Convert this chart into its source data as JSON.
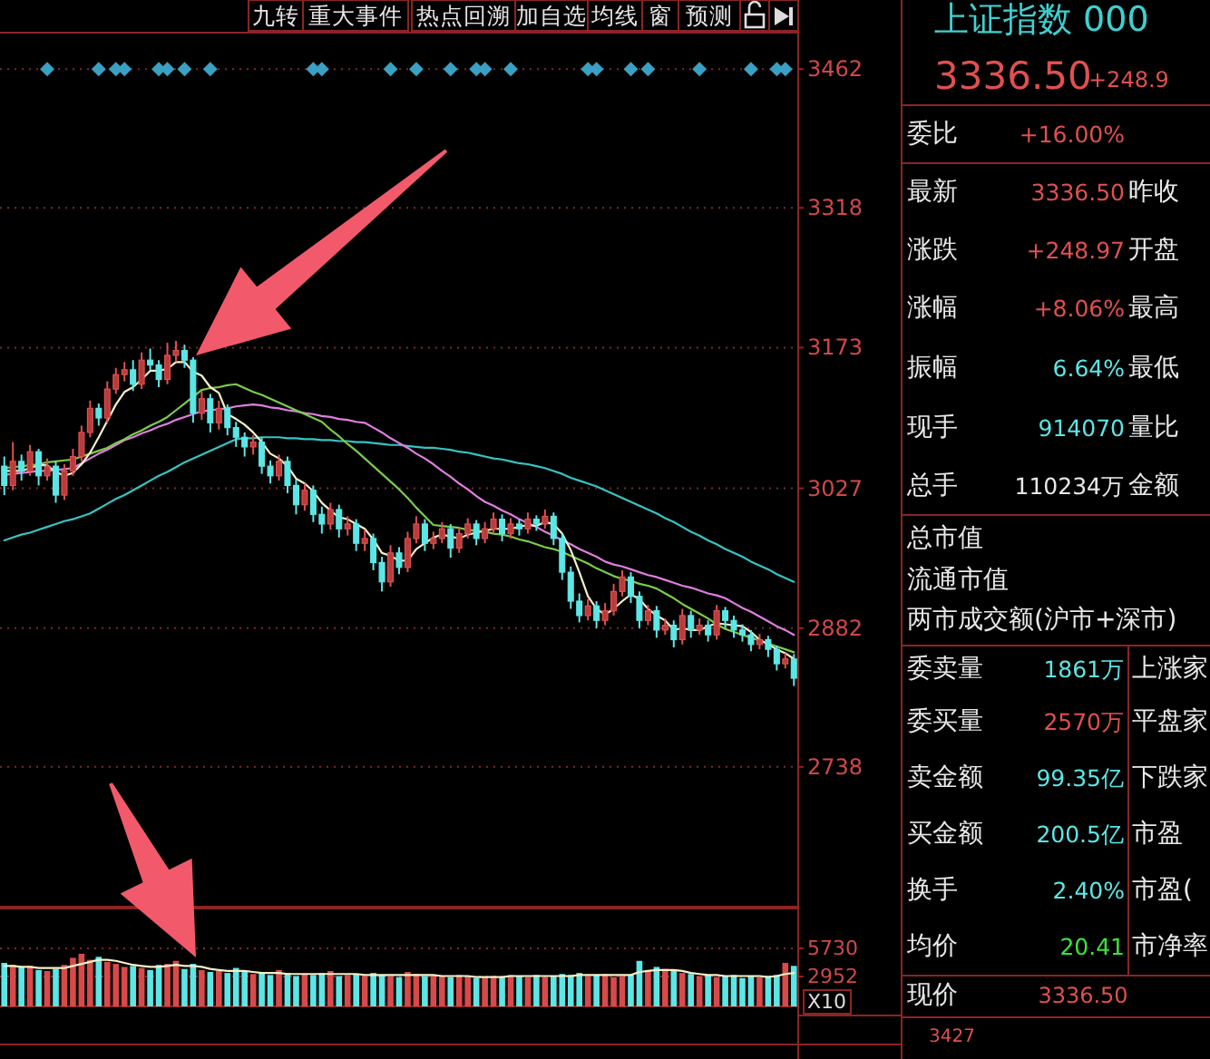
{
  "chart_data": [
    {
      "type": "candlestick",
      "tick_labels": "y",
      "grid": "y",
      "ylim": [
        2593,
        3496
      ],
      "yticks": [
        3462,
        3318,
        3173,
        3027,
        2882,
        2738
      ],
      "annotations": [
        "九转",
        "重大事件",
        "热点回溯",
        "加自选",
        "均线",
        "窗",
        "预测"
      ],
      "categories": [
        null,
        null,
        null,
        null,
        null,
        null,
        null,
        null,
        null,
        null,
        null,
        null,
        null,
        null,
        null,
        null,
        null,
        null,
        null,
        null,
        null,
        null,
        null,
        null,
        null,
        null,
        null,
        null,
        null,
        null,
        null,
        null,
        null,
        null,
        null,
        null,
        null,
        null,
        null,
        null,
        null,
        null,
        null,
        null,
        null,
        null,
        null,
        null,
        null,
        null,
        null,
        null,
        null,
        null,
        null,
        null,
        null,
        null,
        null,
        null,
        null,
        null,
        null,
        null,
        null,
        null,
        null,
        null,
        null,
        null,
        null,
        null,
        null,
        null,
        null,
        null,
        null,
        null,
        null,
        null,
        null,
        null,
        null,
        null,
        null,
        null,
        null,
        null,
        null,
        null,
        null,
        null,
        null
      ],
      "ohlc": [
        [
          3050,
          3060,
          3020,
          3030
        ],
        [
          3030,
          3075,
          3025,
          3055
        ],
        [
          3055,
          3062,
          3035,
          3045
        ],
        [
          3045,
          3072,
          3040,
          3065
        ],
        [
          3065,
          3068,
          3030,
          3040
        ],
        [
          3040,
          3058,
          3035,
          3050
        ],
        [
          3050,
          3055,
          3012,
          3020
        ],
        [
          3020,
          3052,
          3015,
          3045
        ],
        [
          3045,
          3068,
          3040,
          3060
        ],
        [
          3060,
          3092,
          3055,
          3085
        ],
        [
          3085,
          3118,
          3080,
          3110
        ],
        [
          3110,
          3115,
          3092,
          3100
        ],
        [
          3100,
          3138,
          3095,
          3130
        ],
        [
          3130,
          3152,
          3125,
          3145
        ],
        [
          3145,
          3158,
          3138,
          3150
        ],
        [
          3150,
          3160,
          3128,
          3135
        ],
        [
          3135,
          3168,
          3130,
          3160
        ],
        [
          3160,
          3172,
          3150,
          3155
        ],
        [
          3155,
          3160,
          3132,
          3140
        ],
        [
          3140,
          3178,
          3135,
          3165
        ],
        [
          3165,
          3180,
          3158,
          3170
        ],
        [
          3170,
          3176,
          3152,
          3160
        ],
        [
          3160,
          3163,
          3095,
          3105
        ],
        [
          3105,
          3128,
          3098,
          3120
        ],
        [
          3120,
          3125,
          3085,
          3095
        ],
        [
          3095,
          3118,
          3088,
          3110
        ],
        [
          3110,
          3114,
          3082,
          3090
        ],
        [
          3090,
          3096,
          3070,
          3080
        ],
        [
          3080,
          3085,
          3060,
          3070
        ],
        [
          3070,
          3082,
          3062,
          3075
        ],
        [
          3075,
          3080,
          3042,
          3050
        ],
        [
          3050,
          3056,
          3032,
          3040
        ],
        [
          3040,
          3062,
          3035,
          3055
        ],
        [
          3055,
          3060,
          3022,
          3030
        ],
        [
          3030,
          3036,
          3000,
          3010
        ],
        [
          3010,
          3032,
          3004,
          3025
        ],
        [
          3025,
          3030,
          2992,
          3000
        ],
        [
          3000,
          3008,
          2980,
          2990
        ],
        [
          2990,
          3012,
          2984,
          3005
        ],
        [
          3005,
          3010,
          2976,
          2985
        ],
        [
          2985,
          2998,
          2978,
          2990
        ],
        [
          2990,
          2995,
          2962,
          2970
        ],
        [
          2970,
          2984,
          2962,
          2975
        ],
        [
          2975,
          2980,
          2942,
          2950
        ],
        [
          2950,
          2956,
          2920,
          2930
        ],
        [
          2930,
          2968,
          2925,
          2960
        ],
        [
          2960,
          2966,
          2938,
          2945
        ],
        [
          2945,
          2982,
          2940,
          2975
        ],
        [
          2975,
          2998,
          2970,
          2990
        ],
        [
          2990,
          2995,
          2962,
          2970
        ],
        [
          2970,
          2982,
          2964,
          2975
        ],
        [
          2975,
          2992,
          2970,
          2985
        ],
        [
          2985,
          2990,
          2955,
          2965
        ],
        [
          2965,
          2986,
          2960,
          2980
        ],
        [
          2980,
          2996,
          2975,
          2990
        ],
        [
          2990,
          2994,
          2968,
          2975
        ],
        [
          2975,
          2992,
          2970,
          2985
        ],
        [
          2985,
          3002,
          2980,
          2995
        ],
        [
          2995,
          3000,
          2972,
          2980
        ],
        [
          2980,
          2996,
          2975,
          2990
        ],
        [
          2990,
          2995,
          2978,
          2985
        ],
        [
          2985,
          3002,
          2980,
          2995
        ],
        [
          2995,
          2999,
          2983,
          2990
        ],
        [
          2990,
          3005,
          2985,
          2998
        ],
        [
          2998,
          3002,
          2968,
          2975
        ],
        [
          2975,
          2980,
          2932,
          2940
        ],
        [
          2940,
          2946,
          2902,
          2910
        ],
        [
          2910,
          2918,
          2888,
          2895
        ],
        [
          2895,
          2912,
          2890,
          2905
        ],
        [
          2905,
          2910,
          2882,
          2890
        ],
        [
          2890,
          2908,
          2885,
          2900
        ],
        [
          2900,
          2928,
          2895,
          2920
        ],
        [
          2920,
          2942,
          2915,
          2935
        ],
        [
          2935,
          2940,
          2908,
          2915
        ],
        [
          2915,
          2920,
          2882,
          2890
        ],
        [
          2890,
          2906,
          2885,
          2900
        ],
        [
          2900,
          2905,
          2872,
          2880
        ],
        [
          2880,
          2892,
          2875,
          2885
        ],
        [
          2885,
          2890,
          2862,
          2870
        ],
        [
          2870,
          2902,
          2865,
          2895
        ],
        [
          2895,
          2900,
          2872,
          2880
        ],
        [
          2880,
          2892,
          2875,
          2885
        ],
        [
          2885,
          2890,
          2868,
          2875
        ],
        [
          2875,
          2906,
          2870,
          2900
        ],
        [
          2900,
          2904,
          2882,
          2890
        ],
        [
          2890,
          2895,
          2872,
          2880
        ],
        [
          2880,
          2886,
          2868,
          2875
        ],
        [
          2875,
          2880,
          2858,
          2865
        ],
        [
          2865,
          2876,
          2860,
          2870
        ],
        [
          2870,
          2874,
          2852,
          2860
        ],
        [
          2860,
          2864,
          2838,
          2845
        ],
        [
          2845,
          2856,
          2840,
          2850
        ],
        [
          2850,
          2855,
          2822,
          2830
        ]
      ],
      "series": [
        {
          "type": "line",
          "color": "#36c4c4",
          "values": [
            2973,
            2976,
            2979,
            2981,
            2984,
            2987,
            2990,
            2993,
            2995,
            2998,
            3001,
            3006,
            3011,
            3016,
            3020,
            3025,
            3030,
            3035,
            3040,
            3044,
            3049,
            3054,
            3058,
            3062,
            3066,
            3070,
            3074,
            3078,
            3079,
            3079,
            3080,
            3080,
            3080,
            3079,
            3079,
            3078,
            3078,
            3077,
            3077,
            3076,
            3076,
            3075,
            3075,
            3074,
            3073,
            3072,
            3072,
            3071,
            3070,
            3069,
            3069,
            3068,
            3067,
            3065,
            3064,
            3062,
            3060,
            3058,
            3057,
            3055,
            3053,
            3052,
            3050,
            3048,
            3045,
            3042,
            3038,
            3035,
            3032,
            3029,
            3025,
            3021,
            3017,
            3013,
            3009,
            3005,
            3001,
            2996,
            2992,
            2987,
            2982,
            2978,
            2973,
            2969,
            2964,
            2960,
            2956,
            2951,
            2947,
            2943,
            2938,
            2934,
            2930
          ]
        },
        {
          "type": "line",
          "color": "#e07ee0",
          "values": [
            3041,
            3042,
            3043,
            3044,
            3045,
            3045,
            3046,
            3047,
            3048,
            3053,
            3058,
            3063,
            3067,
            3072,
            3077,
            3080,
            3084,
            3087,
            3091,
            3094,
            3098,
            3101,
            3104,
            3107,
            3108,
            3109,
            3110,
            3112,
            3113,
            3114,
            3113,
            3111,
            3110,
            3108,
            3107,
            3105,
            3104,
            3102,
            3101,
            3099,
            3098,
            3096,
            3095,
            3090,
            3085,
            3079,
            3074,
            3069,
            3063,
            3058,
            3052,
            3045,
            3039,
            3032,
            3026,
            3019,
            3013,
            3009,
            3004,
            3000,
            2995,
            2991,
            2987,
            2982,
            2978,
            2973,
            2969,
            2964,
            2960,
            2956,
            2951,
            2948,
            2946,
            2943,
            2940,
            2937,
            2935,
            2932,
            2929,
            2926,
            2924,
            2921,
            2918,
            2916,
            2913,
            2908,
            2903,
            2899,
            2894,
            2889,
            2884,
            2880,
            2875
          ]
        },
        {
          "type": "line",
          "color": "#7ccc4c",
          "values": [
            3048,
            3049,
            3050,
            3051,
            3052,
            3054,
            3055,
            3056,
            3057,
            3060,
            3063,
            3066,
            3069,
            3074,
            3078,
            3083,
            3087,
            3092,
            3096,
            3101,
            3108,
            3115,
            3122,
            3129,
            3131,
            3132,
            3134,
            3135,
            3131,
            3127,
            3124,
            3120,
            3116,
            3112,
            3108,
            3104,
            3100,
            3096,
            3088,
            3081,
            3073,
            3066,
            3058,
            3050,
            3042,
            3034,
            3026,
            3017,
            3007,
            2998,
            2989,
            2988,
            2987,
            2986,
            2984,
            2983,
            2982,
            2980,
            2979,
            2977,
            2974,
            2972,
            2969,
            2966,
            2964,
            2961,
            2957,
            2953,
            2949,
            2944,
            2940,
            2936,
            2933,
            2931,
            2928,
            2926,
            2923,
            2918,
            2913,
            2907,
            2902,
            2897,
            2892,
            2886,
            2881,
            2878,
            2875,
            2872,
            2869,
            2866,
            2863,
            2860,
            2857
          ]
        },
        {
          "type": "line",
          "color": "#f4f0c8",
          "values": [
            3045,
            3045,
            3045,
            3048,
            3051,
            3051,
            3044,
            3040,
            3043,
            3052,
            3064,
            3080,
            3097,
            3114,
            3127,
            3132,
            3140,
            3149,
            3149,
            3151,
            3158,
            3158,
            3148,
            3144,
            3132,
            3126,
            3104,
            3099,
            3093,
            3085,
            3075,
            3063,
            3058,
            3050,
            3037,
            3032,
            3024,
            3012,
            3004,
            2997,
            2995,
            2990,
            2985,
            2974,
            2960,
            2957,
            2952,
            2952,
            2964,
            2970,
            2976,
            2979,
            2977,
            2975,
            2979,
            2981,
            2983,
            2985,
            2985,
            2985,
            2987,
            2989,
            2988,
            2992,
            2990,
            2980,
            2963,
            2940,
            2915,
            2902,
            2896,
            2902,
            2910,
            2917,
            2912,
            2902,
            2895,
            2890,
            2880,
            2882,
            2880,
            2880,
            2884,
            2887,
            2886,
            2885,
            2884,
            2878,
            2870,
            2865,
            2860,
            2856,
            2850
          ]
        },
        {
          "type": "scatter",
          "marker": "diamond",
          "color": "#3aa0c4",
          "values": [
            null,
            null,
            null,
            null,
            null,
            3462,
            null,
            null,
            null,
            null,
            null,
            3462,
            null,
            3462,
            3462,
            null,
            null,
            null,
            3462,
            3462,
            null,
            3462,
            null,
            null,
            3462,
            null,
            null,
            null,
            null,
            null,
            null,
            null,
            null,
            null,
            null,
            null,
            3462,
            3462,
            null,
            null,
            null,
            null,
            null,
            null,
            null,
            3462,
            null,
            null,
            3462,
            null,
            null,
            null,
            3462,
            null,
            null,
            3462,
            3462,
            null,
            null,
            3462,
            null,
            null,
            null,
            null,
            null,
            null,
            null,
            null,
            3462,
            3462,
            null,
            null,
            null,
            3462,
            null,
            3462,
            null,
            null,
            null,
            null,
            null,
            3462,
            null,
            null,
            null,
            null,
            null,
            3462,
            null,
            null,
            3462,
            3462,
            null
          ]
        }
      ]
    },
    {
      "type": "bar",
      "tick_labels": "y",
      "grid": "y",
      "ylim": [
        0,
        9670
      ],
      "yticks": [
        5730,
        2952
      ],
      "annotations": [
        "X10"
      ],
      "categories": [
        null,
        null,
        null,
        null,
        null,
        null,
        null,
        null,
        null,
        null,
        null,
        null,
        null,
        null,
        null,
        null,
        null,
        null,
        null,
        null,
        null,
        null,
        null,
        null,
        null,
        null,
        null,
        null,
        null,
        null,
        null,
        null,
        null,
        null,
        null,
        null,
        null,
        null,
        null,
        null,
        null,
        null,
        null,
        null,
        null,
        null,
        null,
        null,
        null,
        null,
        null,
        null,
        null,
        null,
        null,
        null,
        null,
        null,
        null,
        null,
        null,
        null,
        null,
        null,
        null,
        null,
        null,
        null,
        null,
        null,
        null,
        null,
        null,
        null,
        null,
        null,
        null,
        null,
        null,
        null,
        null,
        null,
        null,
        null,
        null,
        null,
        null,
        null,
        null,
        null,
        null,
        null,
        null
      ],
      "series": [
        {
          "type": "bar",
          "values": [
            4300,
            4100,
            3900,
            4000,
            3600,
            3500,
            3700,
            4100,
            4800,
            5200,
            4600,
            4900,
            4400,
            4200,
            3900,
            4000,
            3800,
            3600,
            4100,
            4200,
            4500,
            3700,
            4200,
            3600,
            3400,
            3500,
            3300,
            3800,
            3400,
            3200,
            3300,
            3100,
            3600,
            3300,
            3000,
            3200,
            3100,
            3300,
            3500,
            3000,
            3100,
            3200,
            3000,
            3300,
            3100,
            3000,
            2900,
            3400,
            3200,
            3000,
            3100,
            3000,
            2900,
            3100,
            3000,
            2800,
            2900,
            3000,
            2900,
            3100,
            3000,
            2900,
            3100,
            2900,
            3000,
            3200,
            3100,
            3300,
            3000,
            3100,
            3200,
            2900,
            3000,
            3100,
            4500,
            3600,
            3900,
            3700,
            3500,
            3300,
            3200,
            3000,
            3100,
            2900,
            3000,
            3100,
            2800,
            3000,
            2900,
            3000,
            3100,
            4300,
            4000
          ],
          "colors": [
            "#5ce6e6",
            "#d84a4a",
            "#5ce6e6",
            "#d84a4a",
            "#5ce6e6",
            "#d84a4a",
            "#5ce6e6",
            "#d84a4a",
            "#d84a4a",
            "#d84a4a",
            "#d84a4a",
            "#5ce6e6",
            "#d84a4a",
            "#d84a4a",
            "#d84a4a",
            "#5ce6e6",
            "#d84a4a",
            "#5ce6e6",
            "#5ce6e6",
            "#d84a4a",
            "#d84a4a",
            "#5ce6e6",
            "#5ce6e6",
            "#d84a4a",
            "#5ce6e6",
            "#d84a4a",
            "#5ce6e6",
            "#5ce6e6",
            "#5ce6e6",
            "#d84a4a",
            "#5ce6e6",
            "#5ce6e6",
            "#d84a4a",
            "#5ce6e6",
            "#5ce6e6",
            "#d84a4a",
            "#5ce6e6",
            "#5ce6e6",
            "#d84a4a",
            "#5ce6e6",
            "#d84a4a",
            "#5ce6e6",
            "#d84a4a",
            "#5ce6e6",
            "#5ce6e6",
            "#d84a4a",
            "#5ce6e6",
            "#d84a4a",
            "#d84a4a",
            "#5ce6e6",
            "#d84a4a",
            "#d84a4a",
            "#5ce6e6",
            "#d84a4a",
            "#d84a4a",
            "#5ce6e6",
            "#d84a4a",
            "#d84a4a",
            "#5ce6e6",
            "#d84a4a",
            "#5ce6e6",
            "#d84a4a",
            "#5ce6e6",
            "#d84a4a",
            "#5ce6e6",
            "#5ce6e6",
            "#5ce6e6",
            "#5ce6e6",
            "#d84a4a",
            "#5ce6e6",
            "#d84a4a",
            "#d84a4a",
            "#d84a4a",
            "#5ce6e6",
            "#5ce6e6",
            "#d84a4a",
            "#5ce6e6",
            "#d84a4a",
            "#5ce6e6",
            "#d84a4a",
            "#5ce6e6",
            "#d84a4a",
            "#5ce6e6",
            "#d84a4a",
            "#5ce6e6",
            "#5ce6e6",
            "#5ce6e6",
            "#5ce6e6",
            "#d84a4a",
            "#5ce6e6",
            "#5ce6e6",
            "#d84a4a",
            "#5ce6e6"
          ]
        },
        {
          "type": "line",
          "color": "#f4f0c8",
          "values": [
            4000,
            4000,
            3900,
            3900,
            3800,
            3800,
            3800,
            3800,
            4000,
            4200,
            4400,
            4600,
            4600,
            4500,
            4300,
            4100,
            4000,
            3900,
            3900,
            4000,
            4100,
            4000,
            4000,
            3900,
            3700,
            3600,
            3500,
            3500,
            3500,
            3400,
            3300,
            3300,
            3300,
            3200,
            3200,
            3200,
            3200,
            3200,
            3200,
            3200,
            3200,
            3200,
            3100,
            3100,
            3100,
            3100,
            3100,
            3100,
            3100,
            3100,
            3100,
            3000,
            3000,
            3000,
            3000,
            2900,
            2900,
            2900,
            2900,
            3000,
            3000,
            3000,
            3000,
            3000,
            3000,
            3000,
            3000,
            3100,
            3100,
            3100,
            3100,
            3100,
            3100,
            3100,
            3400,
            3500,
            3600,
            3600,
            3600,
            3500,
            3300,
            3200,
            3100,
            3100,
            3000,
            3000,
            3000,
            3000,
            3000,
            2900,
            3000,
            3200,
            3300
          ]
        }
      ]
    },
    {
      "type": "other",
      "title": "上证指数 000",
      "annotations": [
        "3336.50",
        "+248.9",
        "委比",
        "+16.00%",
        "最新",
        "3336.50",
        "昨收",
        "涨跌",
        "+248.97",
        "开盘",
        "涨幅",
        "+8.06%",
        "最高",
        "振幅",
        "6.64%",
        "最低",
        "现手",
        "914070",
        "量比",
        "总手",
        "110234万",
        "金额",
        "总市值",
        "流通市值",
        "两市成交额(沪市+深市)",
        "委卖量",
        "1861万",
        "上涨家",
        "委买量",
        "2570万",
        "平盘家",
        "卖金额",
        "99.35亿",
        "下跌家",
        "买金额",
        "200.5亿",
        "市盈",
        "换手",
        "2.40%",
        "市盈(",
        "均价",
        "20.41",
        "市净率",
        "现价",
        "3336.50",
        "3427"
      ]
    }
  ]
}
